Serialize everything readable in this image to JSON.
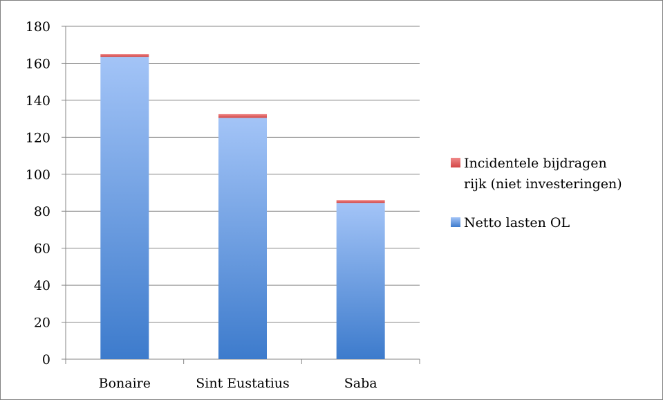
{
  "chart_data": {
    "type": "bar",
    "stacked": true,
    "categories": [
      "Bonaire",
      "Sint Eustatius",
      "Saba"
    ],
    "series": [
      {
        "name": "Netto lasten OL",
        "values": [
          163.5,
          130.5,
          84.5
        ],
        "color": "#4f86d6"
      },
      {
        "name": "Incidentele bijdragen rijk (niet investeringen)",
        "values": [
          1.5,
          2.0,
          1.5
        ],
        "color": "#e05a5a"
      }
    ],
    "ylim": [
      0,
      180
    ],
    "yticks": [
      0,
      20,
      40,
      60,
      80,
      100,
      120,
      140,
      160,
      180
    ],
    "grid": true,
    "legend_position": "right",
    "legend": {
      "entries": [
        {
          "series_index": 1,
          "lines": [
            "Incidentele bijdragen",
            "rijk (niet investeringen)"
          ]
        },
        {
          "series_index": 0,
          "lines": [
            "Netto lasten OL"
          ]
        }
      ]
    }
  }
}
